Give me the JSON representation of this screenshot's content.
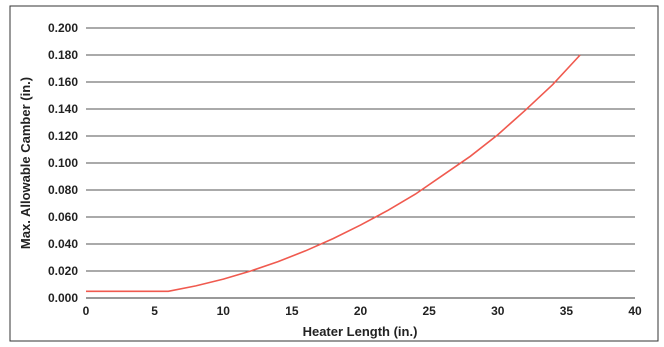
{
  "chart_data": {
    "type": "line",
    "title": "",
    "xlabel": "Heater Length (in.)",
    "ylabel": "Max. Allowable Camber (in.)",
    "xlim": [
      0,
      40
    ],
    "ylim": [
      0,
      0.2
    ],
    "x_ticks": [
      "0",
      "5",
      "10",
      "15",
      "20",
      "25",
      "30",
      "35",
      "40"
    ],
    "y_ticks": [
      "0.000",
      "0.020",
      "0.040",
      "0.060",
      "0.080",
      "0.100",
      "0.120",
      "0.140",
      "0.160",
      "0.180",
      "0.200"
    ],
    "grid": "horizontal",
    "colors": {
      "line": "#f05a4f",
      "grid": "#555555",
      "frame": "#333333"
    },
    "series": [
      {
        "x": [
          0,
          6,
          8,
          10,
          12,
          14,
          16,
          18,
          20,
          22,
          24,
          26,
          28,
          30,
          32,
          34,
          36
        ],
        "values": [
          0.005,
          0.005,
          0.009,
          0.014,
          0.02,
          0.027,
          0.035,
          0.044,
          0.054,
          0.065,
          0.077,
          0.091,
          0.105,
          0.121,
          0.139,
          0.158,
          0.18
        ]
      }
    ]
  }
}
